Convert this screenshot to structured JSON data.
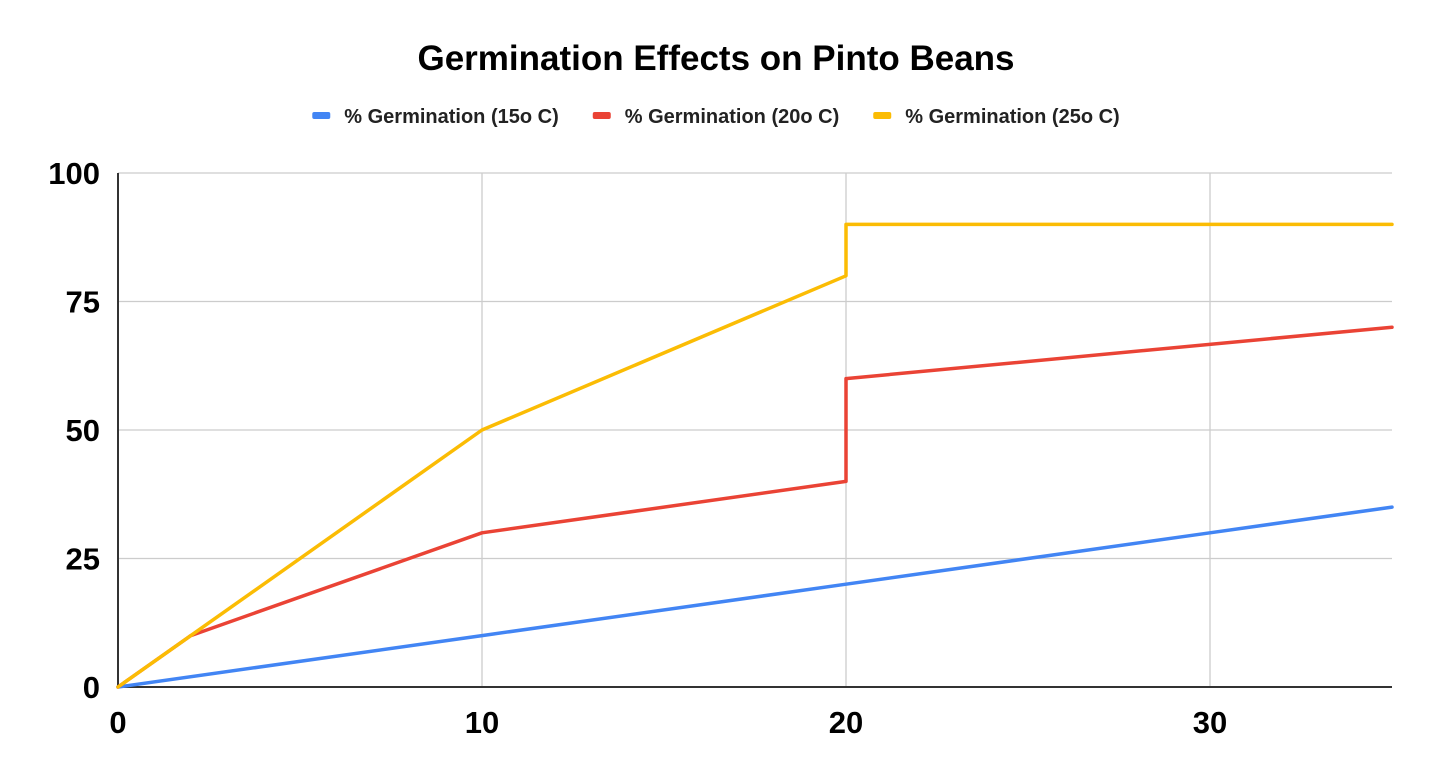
{
  "chart_data": {
    "type": "line",
    "title": "Germination Effects on Pinto Beans",
    "xlabel": "",
    "ylabel": "",
    "xlim": [
      0,
      35
    ],
    "ylim": [
      0,
      100
    ],
    "x_ticks": [
      0,
      10,
      20,
      30
    ],
    "y_ticks": [
      0,
      25,
      50,
      75,
      100
    ],
    "grid": true,
    "legend_position": "top",
    "series": [
      {
        "name": "% Germination (15o C)",
        "color": "#4285f4",
        "points": [
          [
            0,
            0
          ],
          [
            10,
            10
          ],
          [
            20,
            20
          ],
          [
            30,
            30
          ],
          [
            35,
            35
          ]
        ]
      },
      {
        "name": "% Germination (20o C)",
        "color": "#ea4335",
        "points": [
          [
            0,
            0
          ],
          [
            2,
            10
          ],
          [
            10,
            30
          ],
          [
            20,
            40
          ],
          [
            20,
            60
          ],
          [
            35,
            70
          ]
        ]
      },
      {
        "name": "% Germination (25o C)",
        "color": "#fbbc04",
        "points": [
          [
            0,
            0
          ],
          [
            2,
            10
          ],
          [
            10,
            50
          ],
          [
            20,
            80
          ],
          [
            20,
            90
          ],
          [
            35,
            90
          ]
        ]
      }
    ]
  }
}
